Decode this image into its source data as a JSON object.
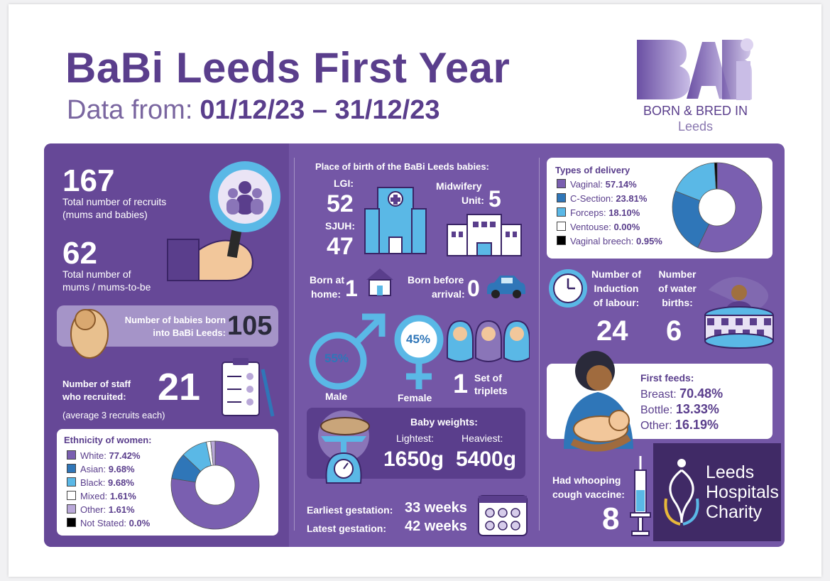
{
  "header": {
    "title": "BaBi Leeds First Year",
    "subtitle_prefix": "Data from:",
    "date_range": "01/12/23 – 31/12/23"
  },
  "logo": {
    "mark": "BaBi",
    "line1": "BORN & BRED IN",
    "line2": "Leeds"
  },
  "recruits": {
    "total": "167",
    "total_label_1": "Total number of recruits",
    "total_label_2": "(mums and babies)",
    "mums": "62",
    "mums_label_1": "Total number of",
    "mums_label_2": "mums / mums-to-be"
  },
  "babies_born": {
    "label_1": "Number of babies born",
    "label_2": "into BaBi Leeds:",
    "value": "105"
  },
  "staff": {
    "label_1": "Number of staff",
    "label_2": "who recruited:",
    "value": "21",
    "note": "(average 3 recruits each)"
  },
  "ethnicity": {
    "title": "Ethnicity of women:",
    "rows": [
      {
        "name": "White:",
        "value": "77.42%",
        "color": "#7a5fb0"
      },
      {
        "name": "Asian:",
        "value": "9.68%",
        "color": "#2f76b8"
      },
      {
        "name": "Black:",
        "value": "9.68%",
        "color": "#5ab8e6"
      },
      {
        "name": "Mixed:",
        "value": "1.61%",
        "color": "#ffffff"
      },
      {
        "name": "Other:",
        "value": "1.61%",
        "color": "#b9a8d8"
      },
      {
        "name": "Not Stated:",
        "value": "0.0%",
        "color": "#000000"
      }
    ]
  },
  "place_of_birth": {
    "title": "Place of birth of the BaBi Leeds babies:",
    "lgi_label": "LGI:",
    "lgi_value": "52",
    "sjuh_label": "SJUH:",
    "sjuh_value": "47",
    "midwifery_label_1": "Midwifery",
    "midwifery_label_2": "Unit:",
    "midwifery_value": "5",
    "home_label_1": "Born at",
    "home_label_2": "home:",
    "home_value": "1",
    "bba_label_1": "Born before",
    "bba_label_2": "arrival:",
    "bba_value": "0"
  },
  "sex": {
    "male_pct": "55%",
    "male_label": "Male",
    "female_pct": "45%",
    "female_label": "Female",
    "triplets_value": "1",
    "triplets_label_1": "Set of",
    "triplets_label_2": "triplets"
  },
  "weights": {
    "title": "Baby weights:",
    "lightest_label": "Lightest:",
    "lightest_value": "1650g",
    "heaviest_label": "Heaviest:",
    "heaviest_value": "5400g"
  },
  "gestation": {
    "earliest_label": "Earliest gestation:",
    "earliest_value": "33 weeks",
    "latest_label": "Latest gestation:",
    "latest_value": "42 weeks"
  },
  "delivery": {
    "title": "Types of delivery",
    "rows": [
      {
        "name": "Vaginal:",
        "value": "57.14%",
        "color": "#7a5fb0"
      },
      {
        "name": "C-Section:",
        "value": "23.81%",
        "color": "#2f76b8"
      },
      {
        "name": "Forceps:",
        "value": "18.10%",
        "color": "#5ab8e6"
      },
      {
        "name": "Ventouse:",
        "value": "0.00%",
        "color": "#ffffff"
      },
      {
        "name": "Vaginal breech:",
        "value": "0.95%",
        "color": "#000000"
      }
    ]
  },
  "induction": {
    "label_1": "Number of",
    "label_2": "Induction",
    "label_3": "of labour:",
    "value": "24"
  },
  "water": {
    "label_1": "Number",
    "label_2": "of water",
    "label_3": "births:",
    "value": "6"
  },
  "feeds": {
    "title": "First feeds:",
    "rows": [
      {
        "name": "Breast:",
        "value": "70.48%"
      },
      {
        "name": "Bottle:",
        "value": "13.33%"
      },
      {
        "name": "Other:",
        "value": "16.19%"
      }
    ]
  },
  "whooping": {
    "label_1": "Had whooping",
    "label_2": "cough vaccine:",
    "value": "8"
  },
  "charity": {
    "line1": "Leeds",
    "line2": "Hospitals",
    "line3": "Charity"
  },
  "colors": {
    "purple_dark": "#5a3e8c",
    "panel": "#7457a6",
    "blue": "#2f76b8",
    "light_blue": "#5ab8e6"
  }
}
